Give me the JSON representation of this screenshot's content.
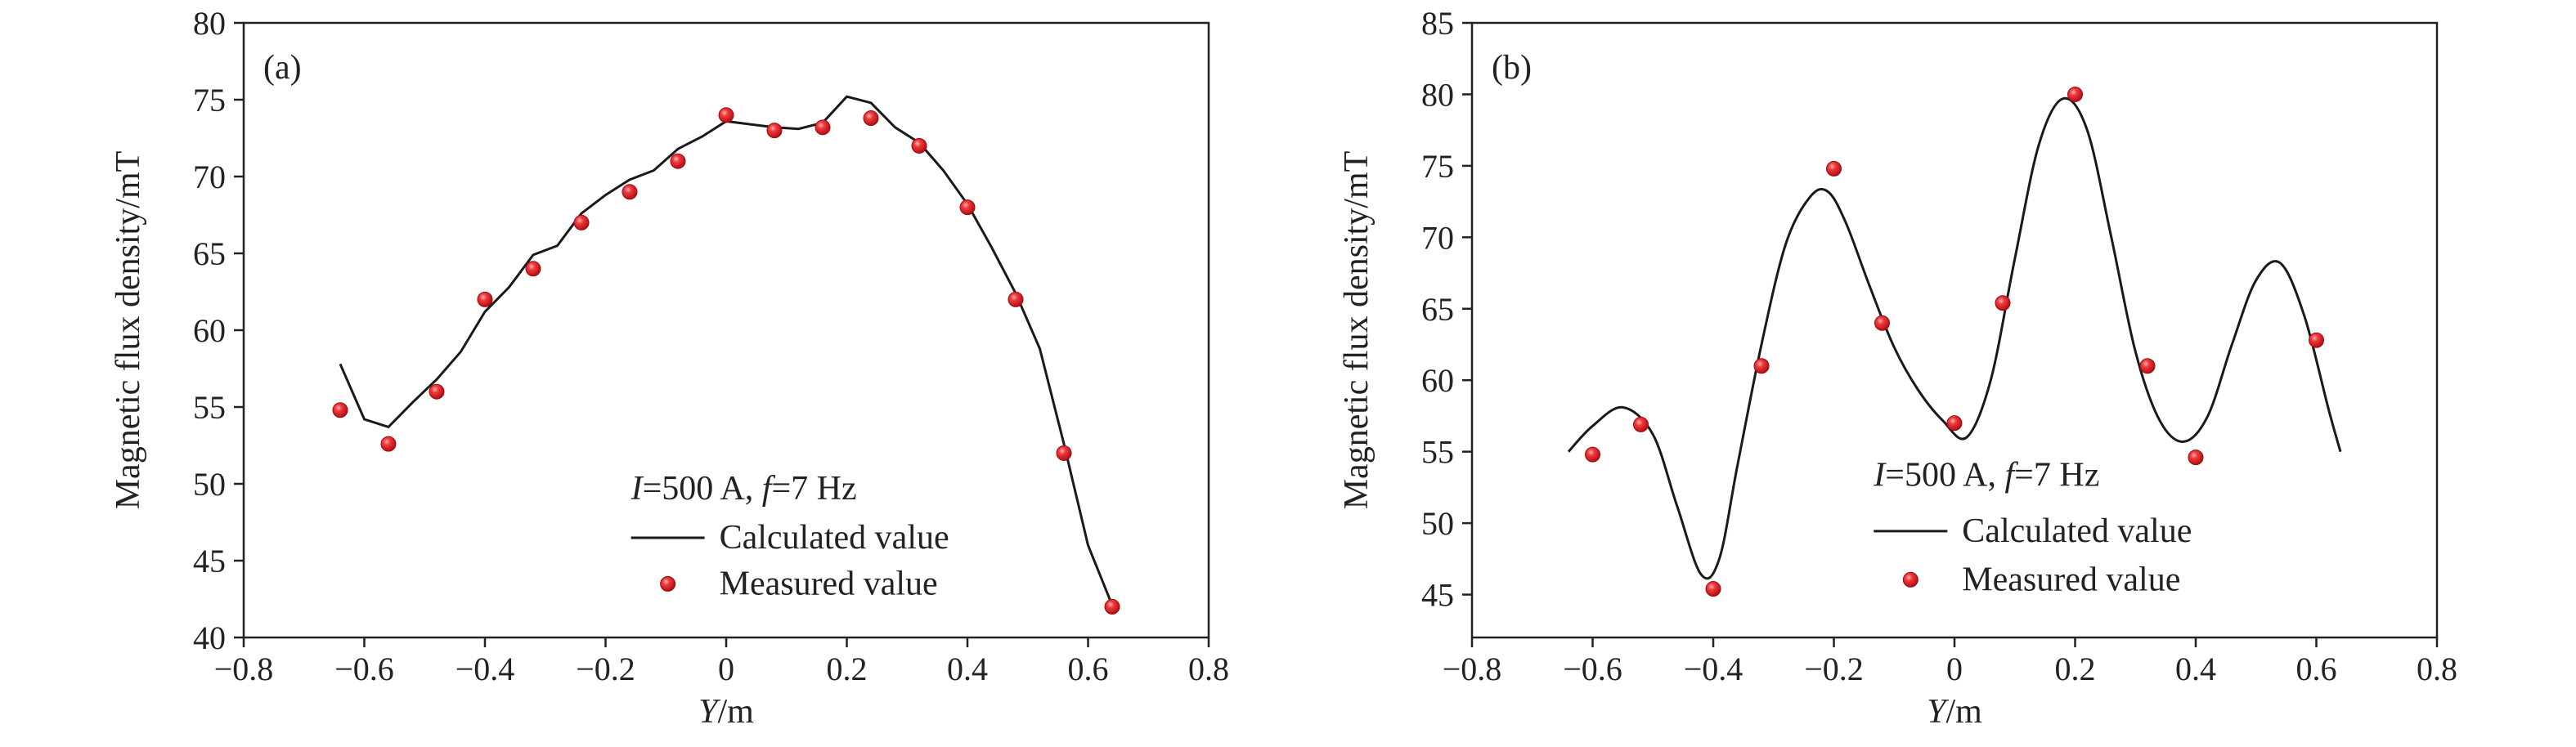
{
  "chart_data": [
    {
      "type": "line",
      "panel_label": "(a)",
      "xlabel": {
        "italic": "Y",
        "rest": "/m"
      },
      "ylabel": "Magnetic flux density/mT",
      "xlim": [
        -0.8,
        0.8
      ],
      "ylim": [
        40,
        80
      ],
      "xticks": [
        -0.8,
        -0.6,
        -0.4,
        -0.2,
        0,
        0.2,
        0.4,
        0.6,
        0.8
      ],
      "xtick_labels": [
        "−0.8",
        "−0.6",
        "−0.4",
        "−0.2",
        "0",
        "0.2",
        "0.4",
        "0.6",
        "0.8"
      ],
      "yticks": [
        40,
        45,
        50,
        55,
        60,
        65,
        70,
        75,
        80
      ],
      "ytick_labels": [
        "40",
        "45",
        "50",
        "55",
        "60",
        "65",
        "70",
        "75",
        "80"
      ],
      "condition": {
        "i": "I",
        "i_rest": "=500 A, ",
        "f": "f",
        "f_rest": "=7 Hz"
      },
      "series": [
        {
          "name": "Calculated value",
          "style": "line",
          "color": "#1a1a1a",
          "x": [
            -0.64,
            -0.6,
            -0.56,
            -0.52,
            -0.48,
            -0.44,
            -0.4,
            -0.36,
            -0.32,
            -0.28,
            -0.24,
            -0.2,
            -0.16,
            -0.12,
            -0.08,
            -0.04,
            0,
            0.04,
            0.08,
            0.12,
            0.16,
            0.2,
            0.24,
            0.28,
            0.32,
            0.36,
            0.4,
            0.44,
            0.48,
            0.52,
            0.56,
            0.6,
            0.64
          ],
          "y": [
            57.8,
            54.2,
            53.7,
            55.3,
            56.8,
            58.6,
            61.2,
            62.8,
            64.9,
            65.5,
            67.6,
            68.8,
            69.8,
            70.4,
            71.8,
            72.6,
            73.6,
            73.4,
            73.2,
            73.1,
            73.5,
            75.2,
            74.8,
            73.2,
            72.2,
            70.4,
            68.2,
            65.4,
            62.4,
            58.8,
            52.6,
            46.0,
            42.1
          ]
        },
        {
          "name": "Measured value",
          "style": "marker",
          "color": "#e8262b",
          "x": [
            -0.64,
            -0.56,
            -0.48,
            -0.4,
            -0.32,
            -0.24,
            -0.16,
            -0.08,
            0,
            0.08,
            0.16,
            0.24,
            0.32,
            0.4,
            0.48,
            0.56,
            0.64
          ],
          "y": [
            54.8,
            52.6,
            56.0,
            62.0,
            64.0,
            67.0,
            69.0,
            71.0,
            74.0,
            73.0,
            73.2,
            73.8,
            72.0,
            68.0,
            62.0,
            52.0,
            42.0
          ]
        }
      ]
    },
    {
      "type": "line",
      "panel_label": "(b)",
      "xlabel": {
        "italic": "Y",
        "rest": "/m"
      },
      "ylabel": "Magnetic flux density/mT",
      "xlim": [
        -0.8,
        0.8
      ],
      "ylim": [
        42,
        85
      ],
      "xticks": [
        -0.8,
        -0.6,
        -0.4,
        -0.2,
        0,
        0.2,
        0.4,
        0.6,
        0.8
      ],
      "xtick_labels": [
        "−0.8",
        "−0.6",
        "−0.4",
        "−0.2",
        "0",
        "0.2",
        "0.4",
        "0.6",
        "0.8"
      ],
      "yticks": [
        45,
        50,
        55,
        60,
        65,
        70,
        75,
        80,
        85
      ],
      "ytick_labels": [
        "45",
        "50",
        "55",
        "60",
        "65",
        "70",
        "75",
        "80",
        "85"
      ],
      "condition": {
        "i": "I",
        "i_rest": "=500 A, ",
        "f": "f",
        "f_rest": "=7 Hz"
      },
      "series": [
        {
          "name": "Calculated value",
          "style": "smooth-line",
          "color": "#1a1a1a",
          "x": [
            -0.64,
            -0.6,
            -0.55,
            -0.5,
            -0.46,
            -0.42,
            -0.39,
            -0.36,
            -0.32,
            -0.28,
            -0.24,
            -0.21,
            -0.18,
            -0.14,
            -0.1,
            -0.06,
            -0.02,
            0.02,
            0.06,
            0.1,
            0.14,
            0.18,
            0.22,
            0.26,
            0.3,
            0.34,
            0.38,
            0.42,
            0.46,
            0.5,
            0.54,
            0.58,
            0.62,
            0.64
          ],
          "y": [
            55.0,
            56.8,
            58.1,
            56.2,
            51.2,
            46.4,
            47.5,
            54.0,
            62.5,
            69.5,
            72.8,
            73.2,
            71.0,
            66.5,
            62.3,
            59.3,
            57.2,
            56.0,
            60.0,
            68.5,
            76.5,
            79.7,
            77.5,
            70.0,
            62.0,
            57.2,
            55.7,
            57.5,
            62.5,
            67.0,
            68.2,
            64.5,
            58.0,
            55.0
          ]
        },
        {
          "name": "Measured value",
          "style": "marker",
          "color": "#e8262b",
          "x": [
            -0.6,
            -0.52,
            -0.4,
            -0.32,
            -0.2,
            -0.12,
            0,
            0.08,
            0.2,
            0.32,
            0.4,
            0.6
          ],
          "y": [
            54.8,
            56.9,
            45.4,
            61.0,
            74.8,
            64.0,
            57.0,
            65.4,
            80.0,
            61.0,
            54.6,
            62.8
          ]
        }
      ]
    }
  ]
}
